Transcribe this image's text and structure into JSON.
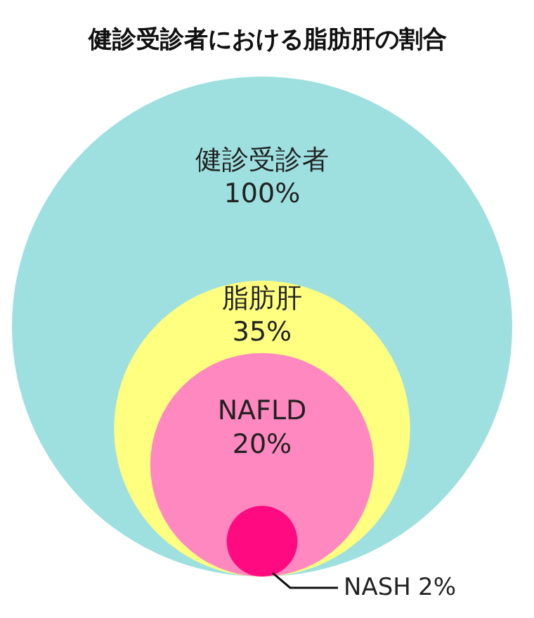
{
  "chart_data": {
    "type": "other",
    "title": "健診受診者における脂肪肝の割合",
    "categories": [
      "健診受診者",
      "脂肪肝",
      "NAFLD",
      "NASH"
    ],
    "values": [
      100,
      35,
      20,
      2
    ],
    "value_labels": [
      "100%",
      "35%",
      "20%",
      "2%"
    ],
    "colors": [
      "#9ee0e0",
      "#ffff80",
      "#ff88c0",
      "#ff0a80"
    ]
  }
}
